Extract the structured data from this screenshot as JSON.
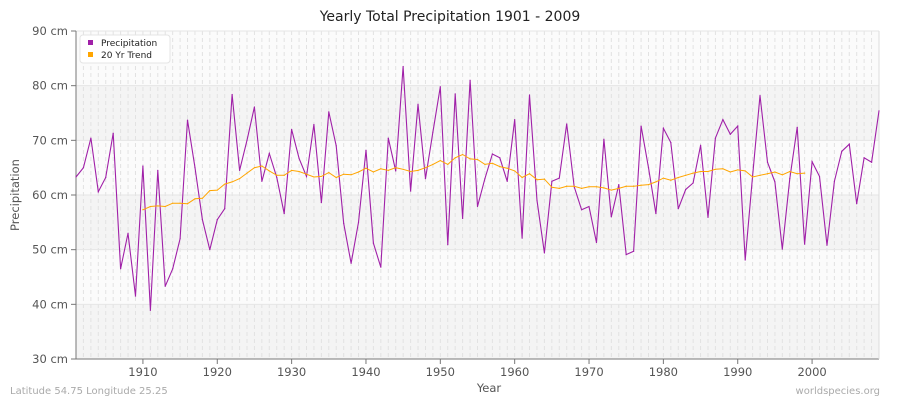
{
  "chart_data": {
    "type": "line",
    "title": "Yearly Total Precipitation 1901 - 2009",
    "xlabel": "Year",
    "ylabel": "Precipitation",
    "xlim": [
      1901,
      2009
    ],
    "ylim": [
      30,
      90
    ],
    "x_ticks": [
      1910,
      1920,
      1930,
      1940,
      1950,
      1960,
      1970,
      1980,
      1990,
      2000
    ],
    "y_ticks": [
      30,
      40,
      50,
      60,
      70,
      80,
      90
    ],
    "y_tick_labels": [
      "30 cm",
      "40 cm",
      "50 cm",
      "60 cm",
      "70 cm",
      "80 cm",
      "90 cm"
    ],
    "grid": true,
    "legend_placement": "top-left",
    "series": [
      {
        "name": "Precipitation",
        "color": "#a020a8",
        "x_start": 1901,
        "values": [
          63.3,
          65,
          70.4,
          60.6,
          63.2,
          71.3,
          46.5,
          53,
          41.5,
          65.3,
          38.9,
          64.5,
          43.3,
          46.5,
          52,
          73.7,
          65,
          55.5,
          50,
          55.5,
          57.5,
          78.4,
          64.5,
          70,
          76.1,
          62.5,
          67.6,
          63.2,
          56.6,
          72,
          66.7,
          63.4,
          72.9,
          58.6,
          75.2,
          69,
          54.8,
          47.5,
          55,
          68.2,
          51.2,
          46.8,
          70.4,
          64.4,
          83.5,
          60.7,
          76.6,
          63,
          71.5,
          79.8,
          50.9,
          78.5,
          55.7,
          81,
          57.9,
          63,
          67.5,
          66.8,
          62.5,
          73.8,
          52.1,
          78.3,
          59,
          49.4,
          62.5,
          63.1,
          73,
          61.5,
          57.3,
          57.9,
          51.3,
          70.2,
          56,
          61.9,
          49.1,
          49.7,
          72.6,
          65,
          56.6,
          72.2,
          69.6,
          57.5,
          61,
          62.2,
          69.1,
          55.9,
          70.4,
          73.8,
          71.1,
          72.6,
          48.1,
          63.5,
          78.2,
          66,
          62.4,
          50.1,
          63,
          72.4,
          51,
          66.1,
          63.4,
          50.8,
          62.5,
          68,
          69.3,
          58.4,
          66.8,
          66,
          75.4
        ]
      },
      {
        "name": "20 Yr Trend",
        "color": "#ffa500",
        "x_start": 1910,
        "values": [
          57.3,
          57.9,
          58,
          57.9,
          58.5,
          58.5,
          58.4,
          59.3,
          59.4,
          60.8,
          60.9,
          62,
          62.4,
          63,
          64,
          65,
          65.3,
          64.4,
          63.6,
          63.6,
          64.5,
          64.3,
          63.8,
          63.3,
          63.4,
          64.1,
          63.2,
          63.8,
          63.7,
          64.2,
          64.9,
          64.2,
          64.8,
          64.5,
          65,
          64.7,
          64.3,
          64.5,
          65,
          65.6,
          66.3,
          65.6,
          66.8,
          67.4,
          66.6,
          66.5,
          65.6,
          65.8,
          65.2,
          64.9,
          64.4,
          63.2,
          63.9,
          62.8,
          62.9,
          61.4,
          61.2,
          61.6,
          61.6,
          61.2,
          61.5,
          61.5,
          61.3,
          60.9,
          61.2,
          61.6,
          61.6,
          61.8,
          61.9,
          62.4,
          63.1,
          62.7,
          63.2,
          63.6,
          64,
          64.3,
          64.3,
          64.7,
          64.8,
          64.2,
          64.6,
          64.4,
          63.3,
          63.6,
          63.9,
          64.2,
          63.7,
          64.3,
          63.9,
          64
        ]
      }
    ]
  },
  "footer": {
    "location": "Latitude 54.75 Longitude 25.25",
    "site": "worldspecies.org"
  }
}
